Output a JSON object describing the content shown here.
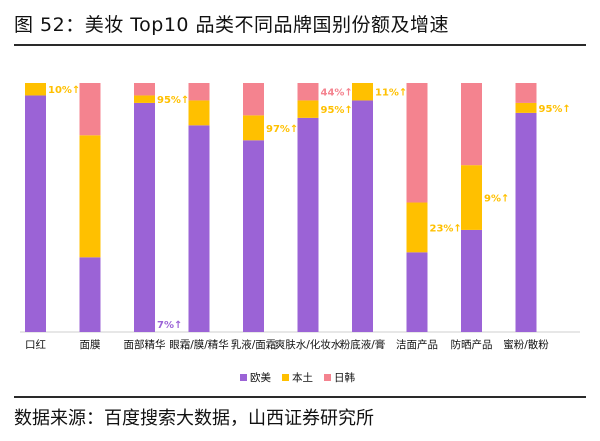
{
  "figure": {
    "title": "图 52：美妆 Top10 品类不同品牌国别份额及增速",
    "source": "数据来源：百度搜索大数据，山西证券研究所"
  },
  "chart_data": {
    "type": "bar",
    "stacked": true,
    "categories": [
      "口红",
      "面膜",
      "面部精华",
      "眼霜/膜/精华",
      "乳液/面霜",
      "爽肤水/化妆水",
      "粉底液/膏",
      "洁面产品",
      "防晒产品",
      "蜜粉/散粉"
    ],
    "series": [
      {
        "name": "欧美",
        "color": "#9b63d6",
        "values": [
          0.95,
          0.3,
          0.92,
          0.83,
          0.77,
          0.86,
          0.93,
          0.32,
          0.41,
          0.88
        ]
      },
      {
        "name": "本土",
        "color": "#ffc000",
        "values": [
          0.05,
          0.49,
          0.03,
          0.1,
          0.1,
          0.07,
          0.07,
          0.2,
          0.26,
          0.04
        ]
      },
      {
        "name": "日韩",
        "color": "#f4838f",
        "values": [
          0.0,
          0.21,
          0.05,
          0.07,
          0.13,
          0.07,
          0.0,
          0.48,
          0.33,
          0.08
        ]
      }
    ],
    "annotations": [
      {
        "category": "口红",
        "series": "本土",
        "text": "10%↑",
        "color": "#ffc000"
      },
      {
        "category": "面部精华",
        "series": "本土",
        "text": "95%↑",
        "color": "#ffc000"
      },
      {
        "category": "面部精华",
        "series": "欧美",
        "text": "7%↑",
        "color": "#9b63d6",
        "position": "bottom"
      },
      {
        "category": "乳液/面霜",
        "series": "本土",
        "text": "97%↑",
        "color": "#ffc000"
      },
      {
        "category": "爽肤水/化妆水",
        "series": "日韩",
        "text": "44%↑",
        "color": "#f4838f"
      },
      {
        "category": "爽肤水/化妆水",
        "series": "本土",
        "text": "95%↑",
        "color": "#ffc000"
      },
      {
        "category": "粉底液/膏",
        "series": "本土",
        "text": "11%↑",
        "color": "#ffc000"
      },
      {
        "category": "洁面产品",
        "series": "本土",
        "text": "23%↑",
        "color": "#ffc000"
      },
      {
        "category": "防晒产品",
        "series": "本土",
        "text": "9%↑",
        "color": "#ffc000"
      },
      {
        "category": "蜜粉/散粉",
        "series": "本土",
        "text": "95%↑",
        "color": "#ffc000"
      }
    ],
    "ylim": [
      0,
      1
    ],
    "grid": false,
    "legend_position": "bottom"
  }
}
